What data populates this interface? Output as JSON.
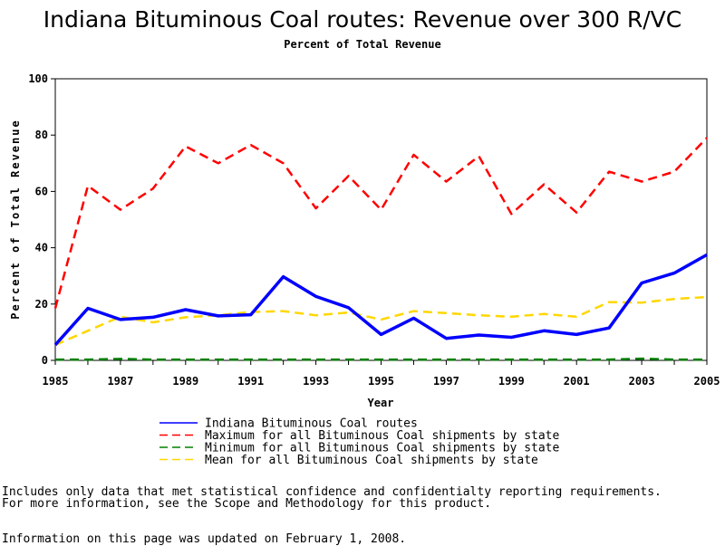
{
  "colors": {
    "indiana": "#0000ff",
    "max": "#ff0000",
    "min": "#008000",
    "mean": "#ffd700"
  },
  "chart_data": {
    "type": "line",
    "title": "Indiana Bituminous Coal routes: Revenue over 300 R/VC",
    "subtitle": "Percent of Total Revenue",
    "xlabel": "Year",
    "ylabel": "Percent of Total Revenue",
    "xlim": [
      1985,
      2005
    ],
    "ylim": [
      0,
      100
    ],
    "x_ticks": [
      "1985",
      "1987",
      "1989",
      "1991",
      "1993",
      "1995",
      "1997",
      "1999",
      "2001",
      "2003",
      "2005"
    ],
    "y_ticks": [
      "0",
      "20",
      "40",
      "60",
      "80",
      "100"
    ],
    "x": [
      1985,
      1986,
      1987,
      1988,
      1989,
      1990,
      1991,
      1992,
      1993,
      1994,
      1995,
      1996,
      1997,
      1998,
      1999,
      2000,
      2001,
      2002,
      2003,
      2004,
      2005
    ],
    "grid": false,
    "legend_position": "bottom",
    "series": [
      {
        "name": "Indiana Bituminous Coal routes",
        "color_key": "indiana",
        "style": "solid",
        "values": [
          5.5,
          18.5,
          14.5,
          15.3,
          18,
          15.8,
          16.2,
          29.7,
          22.7,
          18.7,
          9.2,
          15,
          7.8,
          9,
          8.2,
          10.5,
          9.2,
          11.5,
          27.5,
          31,
          37.5
        ]
      },
      {
        "name": "Maximum for all Bituminous Coal shipments by state",
        "color_key": "max",
        "style": "dashed",
        "values": [
          18.5,
          62,
          53.5,
          61,
          76,
          70,
          76.5,
          70,
          54,
          65.5,
          53.5,
          73,
          63.5,
          72.5,
          52,
          62.5,
          52.5,
          67,
          63.5,
          67,
          79
        ]
      },
      {
        "name": "Minimum for all Bituminous Coal shipments by state",
        "color_key": "min",
        "style": "dashed",
        "values": [
          0.3,
          0.3,
          0.5,
          0.3,
          0.3,
          0.3,
          0.3,
          0.3,
          0.3,
          0.3,
          0.3,
          0.3,
          0.3,
          0.3,
          0.3,
          0.3,
          0.3,
          0.3,
          0.6,
          0.3,
          0.3
        ]
      },
      {
        "name": "Mean for all Bituminous Coal shipments by state",
        "color_key": "mean",
        "style": "dashed",
        "values": [
          5.5,
          10.5,
          15.5,
          13.5,
          15.3,
          16,
          17.2,
          17.5,
          16,
          17,
          14.5,
          17.5,
          16.8,
          16,
          15.5,
          16.5,
          15.5,
          20.7,
          20.5,
          21.8,
          22.5
        ]
      }
    ]
  },
  "footnotes": {
    "line1": "Includes only data that met statistical confidence and confidentialty reporting requirements.",
    "line2": "For more information, see the Scope and Methodology for this product.",
    "line3": "Information on this page was updated on February 1, 2008."
  }
}
